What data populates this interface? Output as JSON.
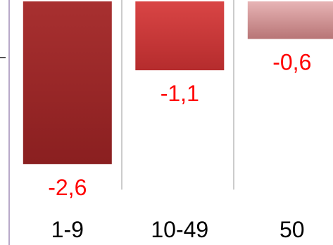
{
  "chart_data": {
    "type": "bar",
    "categories": [
      "1-9",
      "10-49",
      "50"
    ],
    "values": [
      -2.6,
      -1.1,
      -0.6
    ],
    "data_labels": [
      "-2,6",
      "-1,1",
      "-0,6"
    ],
    "bar_colors": [
      "#a12a2b",
      "#cc3a3a",
      "#c98f91"
    ],
    "label_color": "#ff0000",
    "axis_color": "#9a9a9a",
    "grid": false,
    "legend": "none"
  }
}
